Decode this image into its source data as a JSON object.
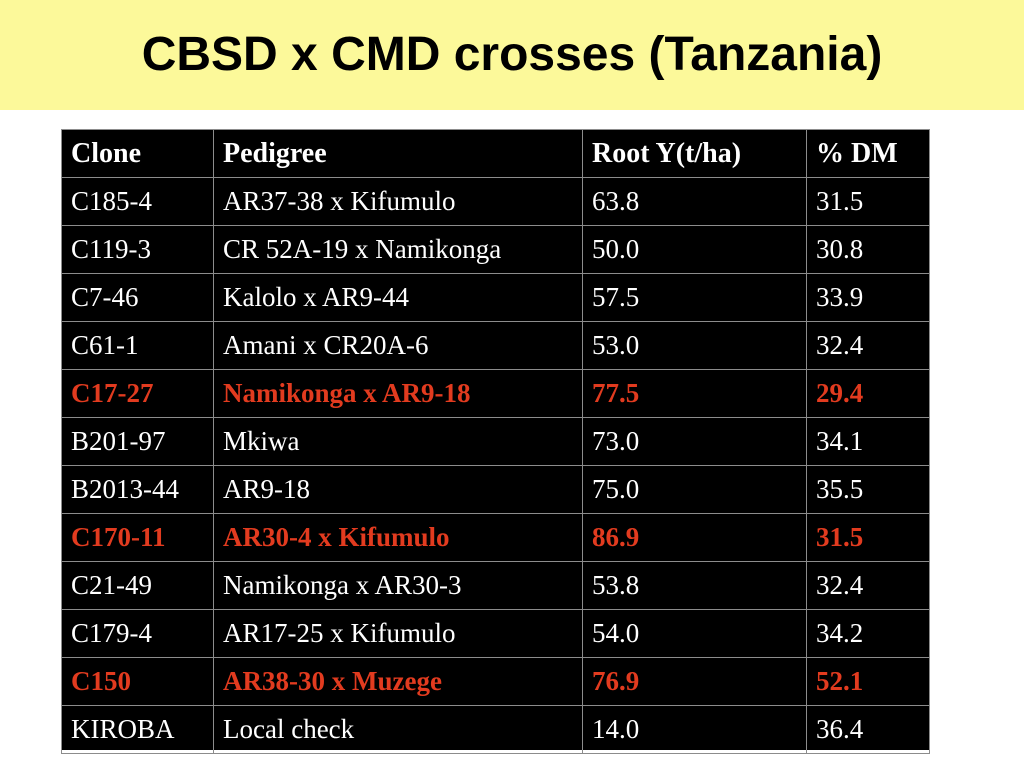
{
  "slide": {
    "title": "CBSD x CMD crosses (Tanzania)",
    "colors": {
      "title_band": "#fcf99a",
      "table_background": "#000000",
      "table_text": "#ffffff",
      "highlight_text": "#e23b1f"
    }
  },
  "table": {
    "headers": [
      "Clone",
      "Pedigree",
      "Root Y(t/ha)",
      "% DM"
    ],
    "rows": [
      {
        "clone": "C185-4",
        "pedigree": "AR37-38 x Kifumulo",
        "root_yield": "63.8",
        "dm": "31.5",
        "highlighted": false
      },
      {
        "clone": "C119-3",
        "pedigree": "CR 52A-19 x Namikonga",
        "root_yield": "50.0",
        "dm": "30.8",
        "highlighted": false
      },
      {
        "clone": "C7-46",
        "pedigree": "Kalolo x AR9-44",
        "root_yield": "57.5",
        "dm": "33.9",
        "highlighted": false
      },
      {
        "clone": "C61-1",
        "pedigree": "Amani x CR20A-6",
        "root_yield": "53.0",
        "dm": "32.4",
        "highlighted": false
      },
      {
        "clone": "C17-27",
        "pedigree": "Namikonga x AR9-18",
        "root_yield": "77.5",
        "dm": "29.4",
        "highlighted": true
      },
      {
        "clone": "B201-97",
        "pedigree": "Mkiwa",
        "root_yield": "73.0",
        "dm": "34.1",
        "highlighted": false
      },
      {
        "clone": "B2013-44",
        "pedigree": "AR9-18",
        "root_yield": "75.0",
        "dm": "35.5",
        "highlighted": false
      },
      {
        "clone": "C170-11",
        "pedigree": "AR30-4 x Kifumulo",
        "root_yield": "86.9",
        "dm": "31.5",
        "highlighted": true
      },
      {
        "clone": "C21-49",
        "pedigree": "Namikonga x AR30-3",
        "root_yield": "53.8",
        "dm": "32.4",
        "highlighted": false
      },
      {
        "clone": "C179-4",
        "pedigree": "AR17-25 x Kifumulo",
        "root_yield": "54.0",
        "dm": "34.2",
        "highlighted": false
      },
      {
        "clone": "C150",
        "pedigree": "AR38-30 x Muzege",
        "root_yield": "76.9",
        "dm": "52.1",
        "highlighted": true
      },
      {
        "clone": "KIROBA",
        "pedigree": "Local check",
        "root_yield": "14.0",
        "dm": "36.4",
        "highlighted": false
      }
    ]
  }
}
